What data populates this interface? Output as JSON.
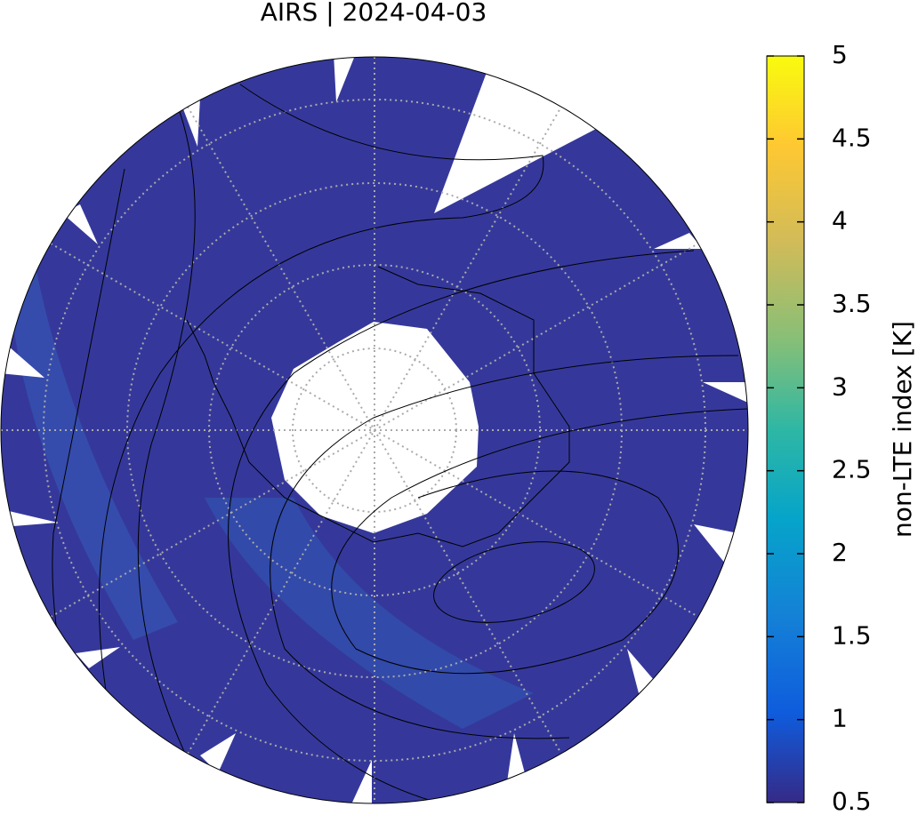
{
  "chart_data": {
    "type": "polar-map",
    "title": "AIRS | 2024-04-03",
    "colorbar": {
      "label": "non-LTE index [K]",
      "lim": [
        0.5,
        5
      ],
      "ticks": [
        0.5,
        1,
        1.5,
        2,
        2.5,
        3,
        3.5,
        4,
        4.5,
        5
      ]
    }
  }
}
